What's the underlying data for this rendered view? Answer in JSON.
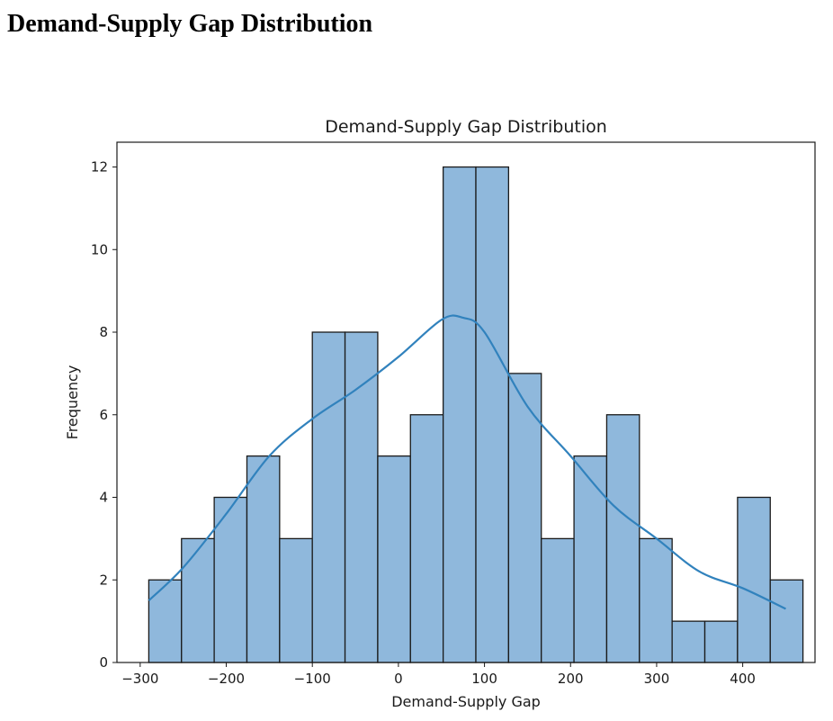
{
  "page": {
    "heading": "Demand-Supply Gap Distribution"
  },
  "chart_data": {
    "type": "bar",
    "subtype": "histogram-with-kde",
    "title": "Demand-Supply Gap Distribution",
    "xlabel": "Demand-Supply Gap",
    "ylabel": "Frequency",
    "xlim": [
      -327,
      484
    ],
    "ylim": [
      0,
      12.6
    ],
    "x_ticks": [
      -300,
      -200,
      -100,
      0,
      100,
      200,
      300,
      400
    ],
    "y_ticks": [
      0,
      2,
      4,
      6,
      8,
      10,
      12
    ],
    "grid": false,
    "legend": "none",
    "bin_edges": [
      -290,
      -252,
      -214,
      -176,
      -138,
      -100,
      -62,
      -24,
      14,
      52,
      90,
      128,
      166,
      204,
      242,
      280,
      318,
      356,
      394,
      432,
      470
    ],
    "bins": [
      {
        "start": -290,
        "end": -252,
        "count": 2
      },
      {
        "start": -252,
        "end": -214,
        "count": 3
      },
      {
        "start": -214,
        "end": -176,
        "count": 4
      },
      {
        "start": -176,
        "end": -138,
        "count": 5
      },
      {
        "start": -138,
        "end": -100,
        "count": 3
      },
      {
        "start": -100,
        "end": -62,
        "count": 8
      },
      {
        "start": -62,
        "end": -24,
        "count": 8
      },
      {
        "start": -24,
        "end": 14,
        "count": 5
      },
      {
        "start": 14,
        "end": 52,
        "count": 6
      },
      {
        "start": 52,
        "end": 90,
        "count": 12
      },
      {
        "start": 90,
        "end": 128,
        "count": 12
      },
      {
        "start": 128,
        "end": 166,
        "count": 7
      },
      {
        "start": 166,
        "end": 204,
        "count": 3
      },
      {
        "start": 204,
        "end": 242,
        "count": 5
      },
      {
        "start": 242,
        "end": 280,
        "count": 6
      },
      {
        "start": 280,
        "end": 318,
        "count": 3
      },
      {
        "start": 318,
        "end": 356,
        "count": 1
      },
      {
        "start": 356,
        "end": 394,
        "count": 1
      },
      {
        "start": 394,
        "end": 432,
        "count": 4
      },
      {
        "start": 432,
        "end": 470,
        "count": 2
      }
    ],
    "kde": {
      "x": [
        -290,
        -250,
        -200,
        -150,
        -100,
        -50,
        0,
        50,
        75,
        100,
        150,
        200,
        250,
        300,
        350,
        400,
        450
      ],
      "y": [
        1.5,
        2.3,
        3.6,
        5.0,
        5.9,
        6.6,
        7.4,
        8.3,
        8.35,
        8.0,
        6.2,
        5.0,
        3.8,
        3.0,
        2.2,
        1.8,
        1.3
      ]
    },
    "colors": {
      "bar_fill": "#8fb8dc",
      "bar_edge": "#1a1a1a",
      "kde_line": "#3182bd"
    }
  }
}
